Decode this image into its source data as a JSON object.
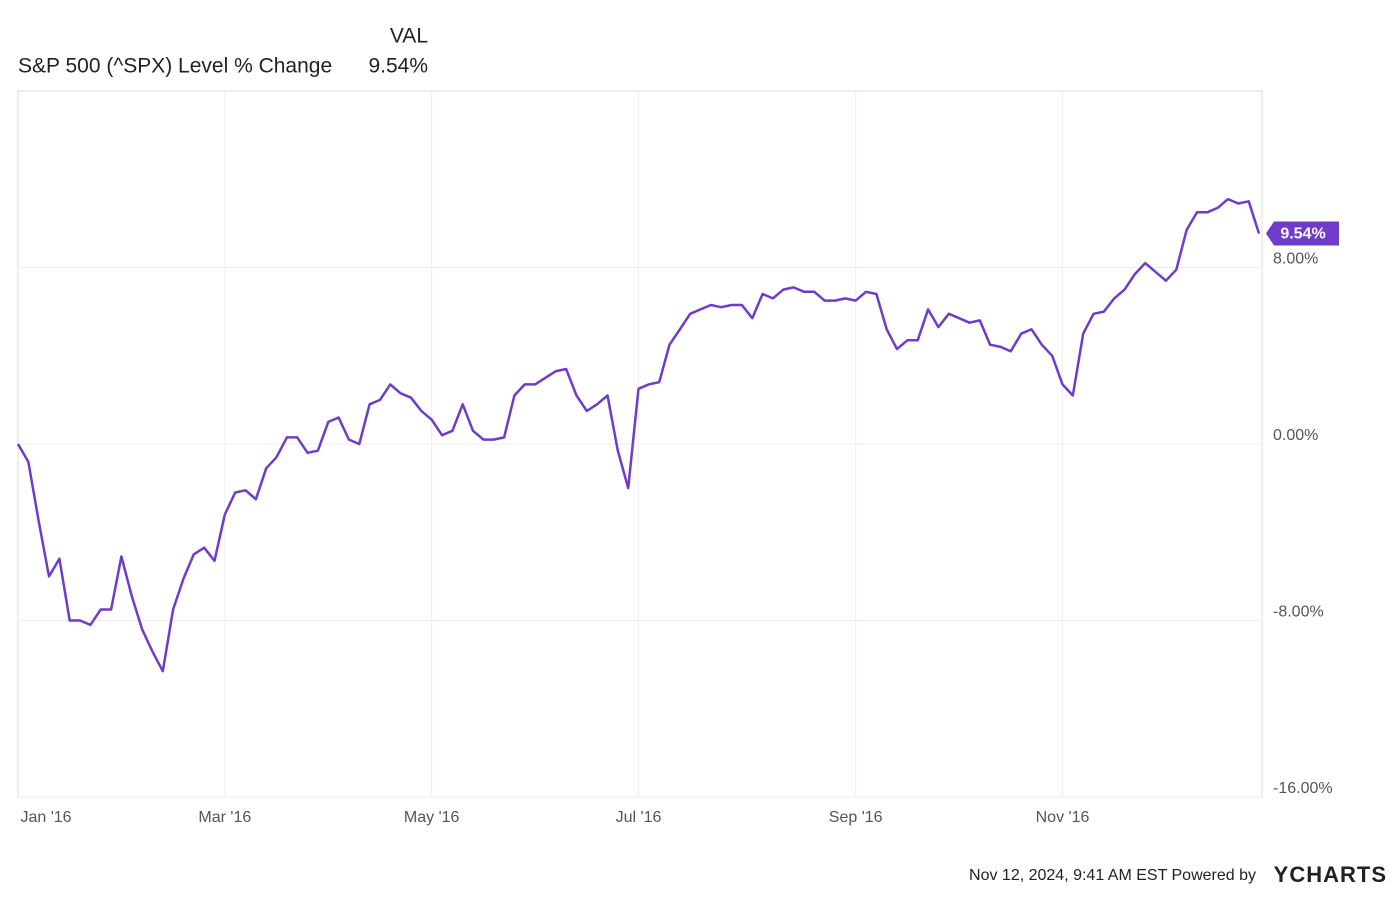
{
  "chart_data": {
    "type": "line",
    "legend_header": "VAL",
    "categories": [
      "Jan '16",
      null,
      null,
      null,
      null,
      null,
      null,
      null,
      null,
      null,
      null,
      null,
      null,
      null,
      null,
      null,
      null,
      null,
      null,
      null,
      "Mar '16",
      null,
      null,
      null,
      null,
      null,
      null,
      null,
      null,
      null,
      null,
      null,
      null,
      null,
      null,
      null,
      null,
      null,
      null,
      null,
      "May '16",
      null,
      null,
      null,
      null,
      null,
      null,
      null,
      null,
      null,
      null,
      null,
      null,
      null,
      null,
      null,
      null,
      null,
      null,
      null,
      "Jul '16",
      null,
      null,
      null,
      null,
      null,
      null,
      null,
      null,
      null,
      null,
      null,
      null,
      null,
      null,
      null,
      null,
      null,
      null,
      null,
      null,
      "Sep '16",
      null,
      null,
      null,
      null,
      null,
      null,
      null,
      null,
      null,
      null,
      null,
      null,
      null,
      null,
      null,
      null,
      null,
      null,
      null,
      "Nov '16",
      null,
      null,
      null,
      null,
      null,
      null,
      null,
      null,
      null,
      null,
      null,
      null,
      null,
      null,
      null,
      null,
      null,
      null,
      null
    ],
    "series": [
      {
        "name": "S&P 500 (^SPX) Level % Change",
        "color": "#6f3cc9",
        "values": [
          0,
          -0.8,
          -3.5,
          -6.0,
          -5.2,
          -8.0,
          -8.0,
          -8.2,
          -7.5,
          -7.5,
          -5.1,
          -6.9,
          -8.4,
          -9.4,
          -10.3,
          -7.5,
          -6.1,
          -5.0,
          -4.7,
          -5.3,
          -3.2,
          -2.2,
          -2.1,
          -2.5,
          -1.1,
          -0.6,
          0.3,
          0.3,
          -0.4,
          -0.3,
          1.0,
          1.2,
          0.2,
          0,
          1.8,
          2.0,
          2.7,
          2.3,
          2.1,
          1.5,
          1.1,
          0.4,
          0.6,
          1.8,
          0.6,
          0.2,
          0.2,
          0.3,
          2.2,
          2.7,
          2.7,
          3.0,
          3.3,
          3.4,
          2.2,
          1.5,
          1.8,
          2.2,
          -0.3,
          -2.0,
          2.5,
          2.7,
          2.8,
          4.5,
          5.2,
          5.9,
          6.1,
          6.3,
          6.2,
          6.3,
          6.3,
          5.7,
          6.8,
          6.6,
          7.0,
          7.1,
          6.9,
          6.9,
          6.5,
          6.5,
          6.6,
          6.5,
          6.9,
          6.8,
          5.2,
          4.3,
          4.7,
          4.7,
          6.1,
          5.3,
          5.9,
          5.7,
          5.5,
          5.6,
          4.5,
          4.4,
          4.2,
          5.0,
          5.2,
          4.5,
          4.0,
          2.7,
          2.2,
          5.0,
          5.9,
          6.0,
          6.6,
          7.0,
          7.7,
          8.2,
          7.8,
          7.4,
          7.9,
          9.7,
          10.5,
          10.5,
          10.7,
          11.1,
          10.9,
          11.0,
          9.54
        ],
        "value_labels": [
          null,
          null,
          null,
          null,
          null,
          null,
          null,
          null,
          null,
          null,
          null,
          null,
          null,
          null,
          null,
          null,
          null,
          null,
          null,
          null,
          null,
          null,
          null,
          null,
          null,
          null,
          null,
          null,
          null,
          null,
          null,
          null,
          null,
          null,
          null,
          null,
          null,
          null,
          null,
          null,
          null,
          null,
          null,
          null,
          null,
          null,
          null,
          null,
          null,
          null,
          null,
          null,
          null,
          null,
          null,
          null,
          null,
          null,
          null,
          null,
          null,
          null,
          null,
          null,
          null,
          null,
          null,
          null,
          null,
          null,
          null,
          null,
          null,
          null,
          null,
          null,
          null,
          null,
          null,
          null,
          null,
          null,
          null,
          null,
          null,
          null,
          null,
          null,
          null,
          null,
          null,
          null,
          null,
          null,
          null,
          null,
          null,
          null,
          null,
          null,
          null,
          null,
          null,
          null,
          null,
          null,
          null,
          null,
          null,
          null,
          null,
          null,
          null,
          null,
          null,
          null,
          null,
          null,
          null,
          null,
          "9.54%"
        ]
      }
    ],
    "ylim": [
      -16,
      16
    ],
    "yticks": [
      {
        "value": -16,
        "label": "-16.00%"
      },
      {
        "value": -8,
        "label": "-8.00%"
      },
      {
        "value": 0,
        "label": "0.00%"
      },
      {
        "value": 8,
        "label": "8.00%"
      }
    ],
    "grid": true,
    "footer": "Nov 12, 2024, 9:41 AM EST Powered by",
    "brand": "YCHARTS"
  }
}
